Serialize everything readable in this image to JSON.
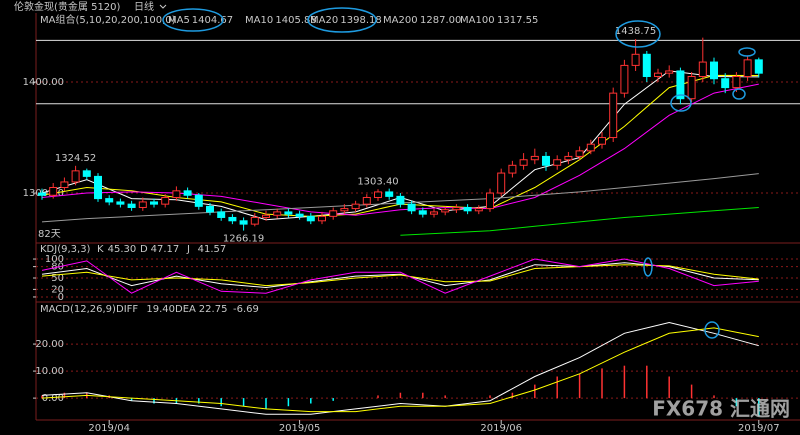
{
  "watermark": "FX678 汇通网",
  "chart_data": [
    {
      "type": "candlestick",
      "title": "伦敦金现(贵金属 5120)",
      "period": "日线",
      "legend_title": "MA组合(5,10,20,200,100,0)",
      "up_color": "#ff3232",
      "down_color": "#00ffff",
      "open": [
        1300,
        1298,
        1305,
        1310,
        1320,
        1315,
        1295,
        1292,
        1290,
        1287,
        1292,
        1290,
        1296,
        1302,
        1298,
        1288,
        1283,
        1278,
        1275,
        1272,
        1278,
        1280,
        1283,
        1281,
        1279,
        1275,
        1279,
        1284,
        1286,
        1290,
        1296,
        1301,
        1297,
        1290,
        1284,
        1281,
        1283,
        1285,
        1287,
        1284,
        1286,
        1300,
        1318,
        1325,
        1330,
        1333,
        1325,
        1330,
        1333,
        1338,
        1344,
        1350,
        1390,
        1415,
        1425,
        1405,
        1408,
        1410,
        1385,
        1405,
        1418,
        1403,
        1395,
        1405,
        1420
      ],
      "high": [
        1304,
        1309,
        1314,
        1324.52,
        1322,
        1318,
        1298,
        1295,
        1293,
        1296,
        1295,
        1299,
        1306,
        1305,
        1300,
        1291,
        1286,
        1281,
        1278,
        1282,
        1284,
        1286,
        1286,
        1284,
        1282,
        1283,
        1287,
        1290,
        1293,
        1299,
        1303.4,
        1304,
        1300,
        1293,
        1287,
        1286,
        1288,
        1290,
        1290,
        1289,
        1304,
        1322,
        1329,
        1336,
        1340,
        1337,
        1334,
        1337,
        1342,
        1348,
        1355,
        1395,
        1420,
        1438.75,
        1428,
        1412,
        1415,
        1413,
        1409,
        1440,
        1422,
        1408,
        1409,
        1424,
        1422
      ],
      "low": [
        1294,
        1295,
        1302,
        1307,
        1312,
        1292,
        1289,
        1287,
        1284,
        1284,
        1287,
        1287,
        1293,
        1295,
        1285,
        1280,
        1275,
        1272,
        1266.19,
        1270,
        1275,
        1277,
        1278,
        1276,
        1272,
        1272,
        1276,
        1281,
        1283,
        1287,
        1293,
        1294,
        1287,
        1281,
        1278,
        1278,
        1280,
        1282,
        1281,
        1281,
        1283,
        1297,
        1314,
        1321,
        1326,
        1320,
        1321,
        1326,
        1330,
        1335,
        1340,
        1346,
        1386,
        1410,
        1400,
        1400,
        1404,
        1380,
        1382,
        1400,
        1398,
        1390,
        1391,
        1401,
        1404
      ],
      "close": [
        1298,
        1305,
        1310,
        1320,
        1315,
        1295,
        1292,
        1290,
        1287,
        1292,
        1290,
        1296,
        1302,
        1298,
        1288,
        1283,
        1278,
        1275,
        1272,
        1278,
        1280,
        1283,
        1281,
        1279,
        1275,
        1279,
        1284,
        1286,
        1290,
        1296,
        1301,
        1297,
        1290,
        1284,
        1281,
        1283,
        1285,
        1287,
        1284,
        1286,
        1300,
        1318,
        1325,
        1330,
        1333,
        1325,
        1330,
        1333,
        1338,
        1344,
        1350,
        1390,
        1415,
        1425,
        1405,
        1408,
        1410,
        1385,
        1405,
        1418,
        1403,
        1395,
        1405,
        1420,
        1408
      ],
      "series": [
        {
          "name": "MA5",
          "value_label": "1404.67",
          "color": "#ffffff",
          "x": [
            0,
            4,
            8,
            12,
            16,
            20,
            24,
            28,
            32,
            36,
            40,
            44,
            48,
            52,
            56,
            60,
            64
          ],
          "values": [
            1300,
            1312,
            1295,
            1294,
            1288,
            1276,
            1279,
            1283,
            1296,
            1284,
            1288,
            1321,
            1332,
            1380,
            1410,
            1405,
            1404.67
          ]
        },
        {
          "name": "MA10",
          "value_label": "1405.88",
          "color": "#ffff00",
          "x": [
            0,
            4,
            8,
            12,
            16,
            20,
            24,
            28,
            32,
            36,
            40,
            44,
            48,
            52,
            56,
            60,
            64
          ],
          "values": [
            1298,
            1305,
            1302,
            1296,
            1292,
            1281,
            1279,
            1281,
            1290,
            1288,
            1286,
            1305,
            1330,
            1360,
            1395,
            1406,
            1405.88
          ]
        },
        {
          "name": "MA20",
          "value_label": "1398.18",
          "color": "#ff00ff",
          "x": [
            0,
            4,
            8,
            12,
            16,
            20,
            24,
            28,
            32,
            36,
            40,
            44,
            48,
            52,
            56,
            60,
            64
          ],
          "values": [
            1296,
            1300,
            1301,
            1300,
            1297,
            1290,
            1283,
            1280,
            1285,
            1287,
            1286,
            1296,
            1316,
            1340,
            1370,
            1390,
            1398.18
          ]
        },
        {
          "name": "MA200",
          "value_label": "1287.00",
          "color": "#00e600",
          "x": [
            32,
            36,
            40,
            44,
            48,
            52,
            56,
            60,
            64
          ],
          "values": [
            1262,
            1264,
            1266,
            1270,
            1274,
            1278,
            1281,
            1284,
            1287
          ]
        },
        {
          "name": "MA100",
          "value_label": "1317.55",
          "color": "#9a9a9a",
          "x": [
            0,
            4,
            8,
            12,
            16,
            20,
            24,
            28,
            32,
            36,
            40,
            44,
            48,
            52,
            56,
            60,
            64
          ],
          "values": [
            1274,
            1277,
            1279,
            1281,
            1283,
            1285,
            1287,
            1289,
            1291,
            1293,
            1295,
            1298,
            1301,
            1305,
            1309,
            1313,
            1317.55
          ]
        }
      ],
      "annotations": [
        {
          "label": "1438.75",
          "value": 1438.75
        },
        {
          "label": "1324.52",
          "value": 1324.52
        },
        {
          "label": "1303.40",
          "value": 1303.4
        },
        {
          "label": "1266.19",
          "value": 1266.19
        }
      ],
      "note": "82天",
      "hlines": [
        1437.5,
        1380.5
      ],
      "ylim": [
        1257.7,
        1460.4
      ],
      "yticks": [
        {
          "value": 1300,
          "label": "1300.00"
        },
        {
          "value": 1400,
          "label": "1400.00"
        }
      ]
    },
    {
      "type": "line",
      "title": "KDJ(9,3,3)",
      "series": [
        {
          "name": "K",
          "value_label": "45.30",
          "color": "#ffffff",
          "x": [
            0,
            4,
            8,
            12,
            16,
            20,
            24,
            28,
            32,
            36,
            40,
            44,
            48,
            52,
            56,
            60,
            64
          ],
          "values": [
            60,
            75,
            30,
            55,
            35,
            25,
            40,
            55,
            60,
            30,
            45,
            85,
            80,
            90,
            80,
            50,
            45.3
          ]
        },
        {
          "name": "D",
          "value_label": "47.17",
          "color": "#ffff00",
          "x": [
            0,
            4,
            8,
            12,
            16,
            20,
            24,
            28,
            32,
            36,
            40,
            44,
            48,
            52,
            56,
            60,
            64
          ],
          "values": [
            55,
            65,
            45,
            50,
            45,
            30,
            38,
            50,
            58,
            40,
            42,
            75,
            80,
            85,
            82,
            60,
            47.17
          ]
        },
        {
          "name": "J",
          "value_label": "41.57",
          "color": "#ff00ff",
          "x": [
            0,
            4,
            8,
            12,
            16,
            20,
            24,
            28,
            32,
            36,
            40,
            44,
            48,
            52,
            56,
            60,
            64
          ],
          "values": [
            70,
            95,
            10,
            65,
            15,
            10,
            45,
            65,
            65,
            10,
            55,
            100,
            80,
            100,
            75,
            30,
            41.57
          ]
        }
      ],
      "ylim": [
        -8,
        137
      ],
      "yticks": [
        0,
        20,
        50,
        80,
        100
      ]
    },
    {
      "type": "macd",
      "title": "MACD(12,26,9)",
      "series": [
        {
          "name": "DIFF",
          "value_label": "19.40",
          "color": "#ffffff",
          "x": [
            0,
            4,
            8,
            12,
            16,
            20,
            24,
            28,
            32,
            36,
            40,
            44,
            48,
            52,
            56,
            60,
            64
          ],
          "values": [
            1,
            2,
            -1,
            -2,
            -4,
            -6,
            -6,
            -4,
            -2,
            -3,
            -1,
            8,
            15,
            24,
            28,
            24,
            19.4
          ]
        },
        {
          "name": "DEA",
          "value_label": "22.75",
          "color": "#ffff00",
          "x": [
            0,
            4,
            8,
            12,
            16,
            20,
            24,
            28,
            32,
            36,
            40,
            44,
            48,
            52,
            56,
            60,
            64
          ],
          "values": [
            0,
            1,
            0,
            -1,
            -2,
            -4,
            -5,
            -5,
            -3,
            -3,
            -2,
            3,
            9,
            17,
            24,
            26,
            22.75
          ]
        }
      ],
      "histogram": {
        "value_label": "-6.69",
        "up_color": "#ff3232",
        "down_color": "#00ffff",
        "x": [
          0,
          2,
          4,
          6,
          8,
          10,
          12,
          14,
          16,
          18,
          20,
          22,
          24,
          26,
          28,
          30,
          32,
          34,
          36,
          38,
          40,
          42,
          44,
          46,
          48,
          50,
          52,
          54,
          56,
          58,
          60,
          62,
          64
        ],
        "values": [
          1,
          2,
          2,
          1,
          -1,
          -2,
          -2,
          -2,
          -3,
          -3,
          -4,
          -3,
          -2,
          -1,
          0,
          1,
          2,
          2,
          1,
          0,
          1,
          2,
          5,
          8,
          9,
          11,
          12,
          12,
          8,
          5,
          1,
          -3,
          -6.69
        ]
      },
      "ylim": [
        -8.1,
        35.2
      ],
      "yticks": [
        {
          "value": 0,
          "label": "0.00"
        },
        {
          "value": 10,
          "label": "10.00"
        },
        {
          "value": 20,
          "label": "20.00"
        }
      ],
      "xticks": [
        {
          "value": 6,
          "label": "2019/04"
        },
        {
          "value": 23,
          "label": "2019/05"
        },
        {
          "value": 41,
          "label": "2019/06"
        },
        {
          "value": 64,
          "label": "2019/07"
        }
      ]
    }
  ]
}
